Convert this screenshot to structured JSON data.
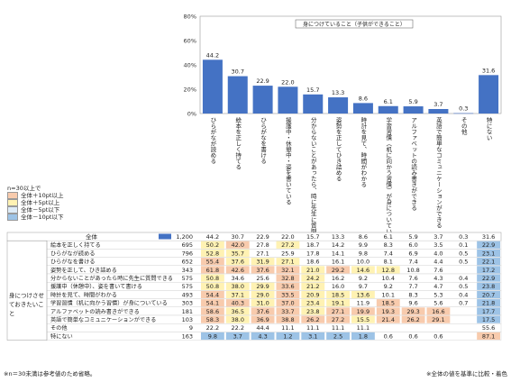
{
  "chart_data": {
    "type": "bar",
    "title": "身につけていること（子供ができること）",
    "y_ticks": [
      "80%",
      "60%",
      "40%",
      "20%",
      "0%"
    ],
    "ylim": [
      0,
      80
    ],
    "categories": [
      "ひらがなが読める",
      "絵本を正しく持てる",
      "ひらがなを書ける",
      "援護中・休憩中・姿を書いている",
      "分からないことがあったら、時に先生に質問できる",
      "姿勢を正してひき詰める",
      "時計を見て、時間がわかる",
      "学習習慣（机に向かう習慣）が身についている",
      "アルファベットの読み書きができる",
      "英語で簡単なコミュニケーションができる",
      "その他",
      "特にない"
    ],
    "values": [
      44.2,
      30.7,
      22.9,
      22.0,
      15.7,
      13.3,
      8.6,
      6.1,
      5.9,
      3.7,
      0.3,
      31.6
    ],
    "bar_color": "#4472c4",
    "legend": {
      "title": "n=30以上で",
      "items": [
        {
          "label": "全体＋10pt以上",
          "color": "#f8cbad"
        },
        {
          "label": "全体＋5pt以上",
          "color": "#fff2b3"
        },
        {
          "label": "全体－5pt以下",
          "color": "#ddebf7"
        },
        {
          "label": "全体－10pt以下",
          "color": "#9dc3e6"
        }
      ]
    },
    "table": {
      "group_label": "身につけさせておきたいこと",
      "total_label": "全体",
      "total_n": "1,200",
      "total_values": [
        "44.2",
        "30.7",
        "22.9",
        "22.0",
        "15.7",
        "13.3",
        "8.6",
        "6.1",
        "5.9",
        "3.7",
        "0.3",
        "31.6"
      ],
      "rows": [
        {
          "label": "絵本を正しく持てる",
          "n": "695",
          "values": [
            "50.2",
            "42.0",
            "27.8",
            "27.2",
            "18.7",
            "14.2",
            "9.9",
            "8.3",
            "6.0",
            "3.5",
            "0.1",
            "22.9"
          ],
          "flags": [
            "y",
            "p",
            "",
            "y",
            "",
            "",
            "",
            "",
            "",
            "",
            "",
            "b"
          ]
        },
        {
          "label": "ひらがなが読める",
          "n": "796",
          "values": [
            "52.8",
            "35.7",
            "27.1",
            "25.9",
            "17.8",
            "14.1",
            "9.8",
            "7.4",
            "6.9",
            "4.0",
            "0.5",
            "23.1"
          ],
          "flags": [
            "y",
            "y",
            "",
            "",
            "",
            "",
            "",
            "",
            "",
            "",
            "",
            "b"
          ]
        },
        {
          "label": "ひらがなを書ける",
          "n": "652",
          "values": [
            "55.4",
            "37.6",
            "31.9",
            "27.1",
            "18.6",
            "16.1",
            "10.0",
            "8.1",
            "7.4",
            "4.4",
            "0.5",
            "22.1"
          ],
          "flags": [
            "p",
            "y",
            "y",
            "y",
            "",
            "",
            "",
            "",
            "",
            "",
            "",
            "b"
          ]
        },
        {
          "label": "姿勢を正して、ひき詰める",
          "n": "343",
          "values": [
            "61.8",
            "42.6",
            "37.6",
            "32.1",
            "21.0",
            "29.2",
            "14.6",
            "12.8",
            "10.8",
            "7.6",
            "",
            "17.2"
          ],
          "flags": [
            "p",
            "p",
            "p",
            "p",
            "y",
            "p",
            "y",
            "y",
            "",
            "",
            "",
            "b"
          ]
        },
        {
          "label": "分からないことがあったら時に先生に質問できる",
          "n": "575",
          "values": [
            "50.8",
            "34.6",
            "25.6",
            "32.8",
            "24.2",
            "16.2",
            "9.2",
            "10.4",
            "7.6",
            "4.3",
            "0.4",
            "22.9"
          ],
          "flags": [
            "y",
            "",
            "",
            "p",
            "y",
            "",
            "",
            "",
            "",
            "",
            "",
            "b"
          ]
        },
        {
          "label": "援護中（休憩中）、姿を書いて書ける",
          "n": "575",
          "values": [
            "50.8",
            "38.0",
            "29.9",
            "33.6",
            "21.2",
            "16.0",
            "9.7",
            "9.2",
            "7.7",
            "4.7",
            "0.5",
            "23.8"
          ],
          "flags": [
            "y",
            "y",
            "y",
            "p",
            "y",
            "",
            "",
            "",
            "",
            "",
            "",
            "b"
          ]
        },
        {
          "label": "時計を見て、時間がわかる",
          "n": "493",
          "values": [
            "54.4",
            "37.1",
            "29.0",
            "33.5",
            "20.9",
            "18.5",
            "13.6",
            "10.1",
            "8.3",
            "5.3",
            "0.4",
            "20.7"
          ],
          "flags": [
            "p",
            "y",
            "y",
            "p",
            "y",
            "y",
            "y",
            "",
            "",
            "",
            "",
            "b"
          ]
        },
        {
          "label": "学習習慣（机に向かう習慣）が身についている",
          "n": "303",
          "values": [
            "54.1",
            "40.3",
            "31.0",
            "37.0",
            "23.4",
            "19.1",
            "11.9",
            "18.5",
            "9.6",
            "5.6",
            "0.7",
            "21.8"
          ],
          "flags": [
            "p",
            "p",
            "y",
            "p",
            "y",
            "y",
            "",
            "p",
            "",
            "",
            "",
            "b"
          ]
        },
        {
          "label": "アルファベットの読み書きができる",
          "n": "181",
          "values": [
            "58.6",
            "36.5",
            "37.6",
            "33.7",
            "23.8",
            "27.1",
            "19.9",
            "19.3",
            "29.3",
            "16.6",
            "",
            "17.7"
          ],
          "flags": [
            "p",
            "y",
            "p",
            "p",
            "y",
            "p",
            "p",
            "p",
            "p",
            "p",
            "",
            "b"
          ]
        },
        {
          "label": "英語で簡単なコミュニケーションができる",
          "n": "103",
          "values": [
            "58.3",
            "38.0",
            "36.9",
            "38.8",
            "26.2",
            "27.2",
            "15.5",
            "21.4",
            "26.2",
            "29.1",
            "",
            "17.5"
          ],
          "flags": [
            "p",
            "y",
            "p",
            "p",
            "p",
            "p",
            "y",
            "p",
            "p",
            "p",
            "",
            "b"
          ]
        },
        {
          "label": "その他",
          "n": "9",
          "values": [
            "22.2",
            "22.2",
            "44.4",
            "11.1",
            "11.1",
            "11.1",
            "11.1",
            "",
            "",
            "",
            "",
            "55.6"
          ],
          "flags": [
            "",
            "",
            "",
            "",
            "",
            "",
            "",
            "",
            "",
            "",
            "",
            ""
          ]
        },
        {
          "label": "特にない",
          "n": "163",
          "values": [
            "9.8",
            "3.7",
            "4.3",
            "1.2",
            "3.1",
            "2.5",
            "1.8",
            "0.6",
            "0.6",
            "0.6",
            "",
            "87.1"
          ],
          "flags": [
            "b",
            "b",
            "b",
            "b",
            "b",
            "b",
            "b",
            "",
            "",
            "",
            "",
            "p"
          ]
        }
      ]
    }
  },
  "footer": {
    "left": "※n＝30未満は参考値のため省略。",
    "right": "※全体の値を基準に比較・着色"
  }
}
